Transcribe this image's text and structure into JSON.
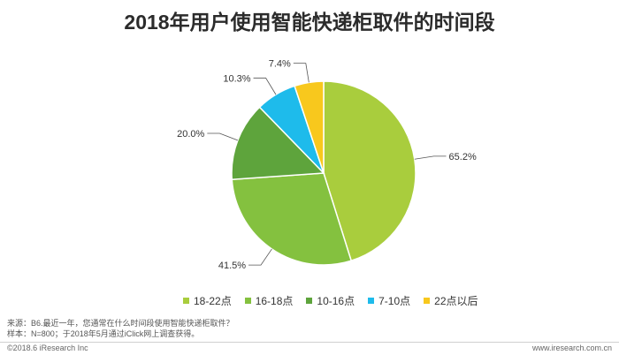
{
  "chart_data": {
    "type": "pie",
    "title": "2018年用户使用智能快递柜取件的时间段",
    "categories": [
      "18-22点",
      "16-18点",
      "10-16点",
      "7-10点",
      "22点以后"
    ],
    "values": [
      65.2,
      41.5,
      20.0,
      10.3,
      7.4
    ],
    "labels": [
      "65.2%",
      "41.5%",
      "20.0%",
      "10.3%",
      "7.4%"
    ],
    "colors": [
      "#a9cd3d",
      "#84c13f",
      "#5ea43c",
      "#1ebbeb",
      "#f8c81d"
    ],
    "legend_position": "bottom",
    "start": "top",
    "direction": "clockwise"
  },
  "footer": {
    "source_line1": "来源：B6.最近一年，您通常在什么时间段使用智能快递柜取件？",
    "source_line2": "样本：N=800；于2018年5月通过iClick网上调查获得。",
    "copyright": "©2018.6 iResearch Inc",
    "website": "www.iresearch.com.cn"
  }
}
